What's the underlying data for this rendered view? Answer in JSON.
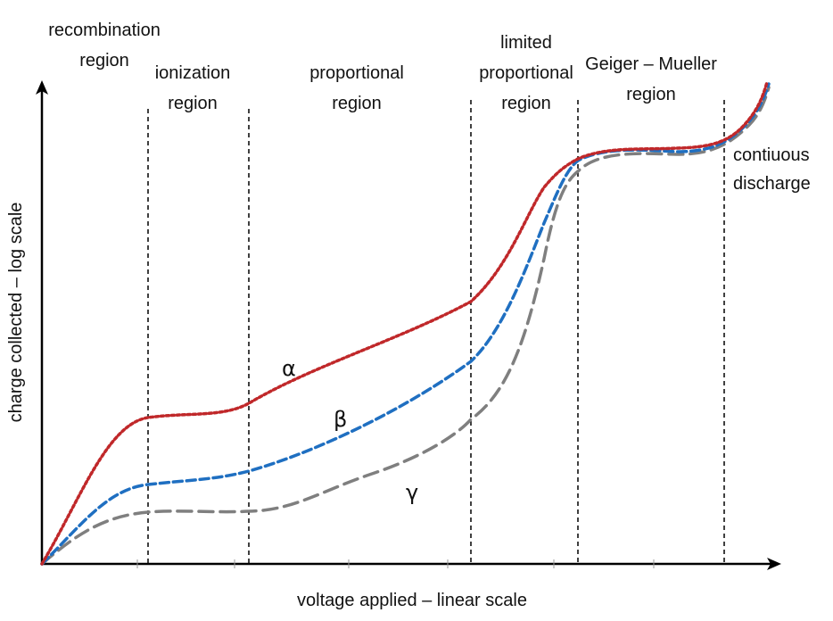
{
  "diagram": {
    "x_axis_label": "voltage applied – linear scale",
    "y_axis_label": "charge collected – log scale",
    "regions": [
      {
        "key": "recombination",
        "lines": [
          "recombination",
          "region"
        ]
      },
      {
        "key": "ionization",
        "lines": [
          "ionization",
          "region"
        ]
      },
      {
        "key": "proportional",
        "lines": [
          "proportional",
          "region"
        ]
      },
      {
        "key": "limited-proportional",
        "lines": [
          "limited",
          "proportional",
          "region"
        ]
      },
      {
        "key": "geiger-mueller",
        "lines": [
          "Geiger – Mueller",
          "region"
        ]
      },
      {
        "key": "continuous-discharge",
        "lines": [
          "contiuous",
          "discharge"
        ]
      }
    ],
    "curves": [
      {
        "key": "alpha",
        "label": "α",
        "color": "#c0282a",
        "style": "dotted"
      },
      {
        "key": "beta",
        "label": "β",
        "color": "#1f6fc1",
        "style": "dashed"
      },
      {
        "key": "gamma",
        "label": "γ",
        "color": "#7f7f7f",
        "style": "long-dashed"
      }
    ],
    "colors": {
      "axis": "#000000",
      "divider": "#000000",
      "text": "#111111"
    }
  }
}
